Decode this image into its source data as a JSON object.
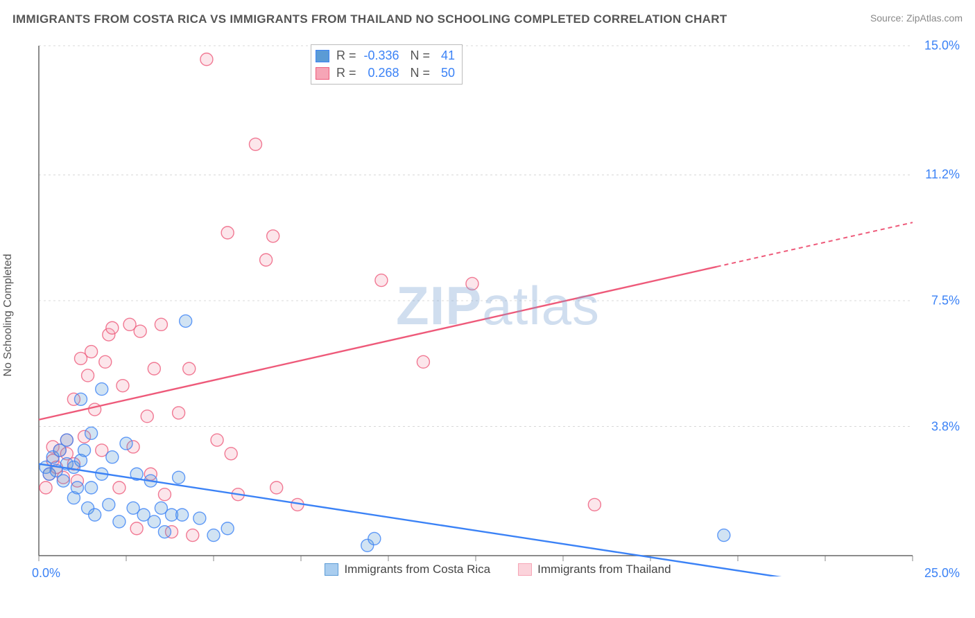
{
  "title": "IMMIGRANTS FROM COSTA RICA VS IMMIGRANTS FROM THAILAND NO SCHOOLING COMPLETED CORRELATION CHART",
  "source": "Source: ZipAtlas.com",
  "ylabel": "No Schooling Completed",
  "watermark_a": "ZIP",
  "watermark_b": "atlas",
  "chart": {
    "type": "scatter",
    "background_color": "#ffffff",
    "grid_color": "#d8d8d8",
    "grid_dash": "3,4",
    "axis_color": "#666666",
    "tick_color": "#888888",
    "xlim": [
      0,
      25
    ],
    "ylim": [
      0,
      15
    ],
    "x_tick_step": 2.5,
    "y_gridlines": [
      3.8,
      7.5,
      11.2,
      15.0
    ],
    "x_min_label": "0.0%",
    "x_max_label": "25.0%",
    "y_labels": [
      "3.8%",
      "7.5%",
      "11.2%",
      "15.0%"
    ],
    "marker_radius": 9,
    "marker_fill_opacity": 0.28,
    "marker_stroke_width": 1.4,
    "tick_font_color": "#3b82f6",
    "series": [
      {
        "name": "Immigrants from Costa Rica",
        "color": "#5b9bd5",
        "stroke": "#3b82f6",
        "r_value": "-0.336",
        "n_value": "41",
        "trend": {
          "x1": 0,
          "y1": 2.7,
          "x2": 17.2,
          "y2": 0,
          "dash_from_x": 25
        },
        "points": [
          [
            0.2,
            2.6
          ],
          [
            0.3,
            2.4
          ],
          [
            0.4,
            2.9
          ],
          [
            0.5,
            2.5
          ],
          [
            0.6,
            3.1
          ],
          [
            0.7,
            2.2
          ],
          [
            0.8,
            2.7
          ],
          [
            0.8,
            3.4
          ],
          [
            1.0,
            2.6
          ],
          [
            1.0,
            1.7
          ],
          [
            1.1,
            2.0
          ],
          [
            1.2,
            2.8
          ],
          [
            1.2,
            4.6
          ],
          [
            1.3,
            3.1
          ],
          [
            1.4,
            1.4
          ],
          [
            1.5,
            2.0
          ],
          [
            1.5,
            3.6
          ],
          [
            1.6,
            1.2
          ],
          [
            1.8,
            4.9
          ],
          [
            1.8,
            2.4
          ],
          [
            2.0,
            1.5
          ],
          [
            2.1,
            2.9
          ],
          [
            2.3,
            1.0
          ],
          [
            2.5,
            3.3
          ],
          [
            2.7,
            1.4
          ],
          [
            2.8,
            2.4
          ],
          [
            3.0,
            1.2
          ],
          [
            3.2,
            2.2
          ],
          [
            3.3,
            1.0
          ],
          [
            3.5,
            1.4
          ],
          [
            3.6,
            0.7
          ],
          [
            3.8,
            1.2
          ],
          [
            4.0,
            2.3
          ],
          [
            4.1,
            1.2
          ],
          [
            4.2,
            6.9
          ],
          [
            4.6,
            1.1
          ],
          [
            5.0,
            0.6
          ],
          [
            5.4,
            0.8
          ],
          [
            9.4,
            0.3
          ],
          [
            9.6,
            0.5
          ],
          [
            19.6,
            0.6
          ]
        ]
      },
      {
        "name": "Immigrants from Thailand",
        "color": "#f6a5b6",
        "stroke": "#ee5a7a",
        "r_value": "0.268",
        "n_value": "50",
        "trend": {
          "x1": 0,
          "y1": 4.0,
          "x2": 25,
          "y2": 9.8,
          "dash_from_x": 19.4
        },
        "points": [
          [
            0.2,
            2.0
          ],
          [
            0.3,
            2.4
          ],
          [
            0.4,
            2.8
          ],
          [
            0.4,
            3.2
          ],
          [
            0.5,
            2.6
          ],
          [
            0.6,
            3.1
          ],
          [
            0.7,
            2.3
          ],
          [
            0.8,
            3.0
          ],
          [
            0.8,
            3.4
          ],
          [
            1.0,
            4.6
          ],
          [
            1.0,
            2.7
          ],
          [
            1.1,
            2.2
          ],
          [
            1.2,
            5.8
          ],
          [
            1.3,
            3.5
          ],
          [
            1.4,
            5.3
          ],
          [
            1.5,
            6.0
          ],
          [
            1.6,
            4.3
          ],
          [
            1.8,
            3.1
          ],
          [
            1.9,
            5.7
          ],
          [
            2.0,
            6.5
          ],
          [
            2.1,
            6.7
          ],
          [
            2.3,
            2.0
          ],
          [
            2.4,
            5.0
          ],
          [
            2.6,
            6.8
          ],
          [
            2.7,
            3.2
          ],
          [
            2.8,
            0.8
          ],
          [
            2.9,
            6.6
          ],
          [
            3.1,
            4.1
          ],
          [
            3.2,
            2.4
          ],
          [
            3.3,
            5.5
          ],
          [
            3.5,
            6.8
          ],
          [
            3.6,
            1.8
          ],
          [
            3.8,
            0.7
          ],
          [
            4.0,
            4.2
          ],
          [
            4.3,
            5.5
          ],
          [
            4.4,
            0.6
          ],
          [
            4.8,
            14.6
          ],
          [
            5.1,
            3.4
          ],
          [
            5.4,
            9.5
          ],
          [
            5.5,
            3.0
          ],
          [
            5.7,
            1.8
          ],
          [
            6.2,
            12.1
          ],
          [
            6.5,
            8.7
          ],
          [
            6.7,
            9.4
          ],
          [
            6.8,
            2.0
          ],
          [
            9.8,
            8.1
          ],
          [
            11.0,
            5.7
          ],
          [
            12.4,
            8.0
          ],
          [
            15.9,
            1.5
          ],
          [
            7.4,
            1.5
          ]
        ]
      }
    ]
  },
  "stats_labels": {
    "r": "R =",
    "n": "N ="
  },
  "bottom_legend": [
    {
      "swatch_fill": "#a9cdef",
      "swatch_stroke": "#5b9bd5",
      "label": "Immigrants from Costa Rica"
    },
    {
      "swatch_fill": "#fbd3db",
      "swatch_stroke": "#f6a5b6",
      "label": "Immigrants from Thailand"
    }
  ]
}
